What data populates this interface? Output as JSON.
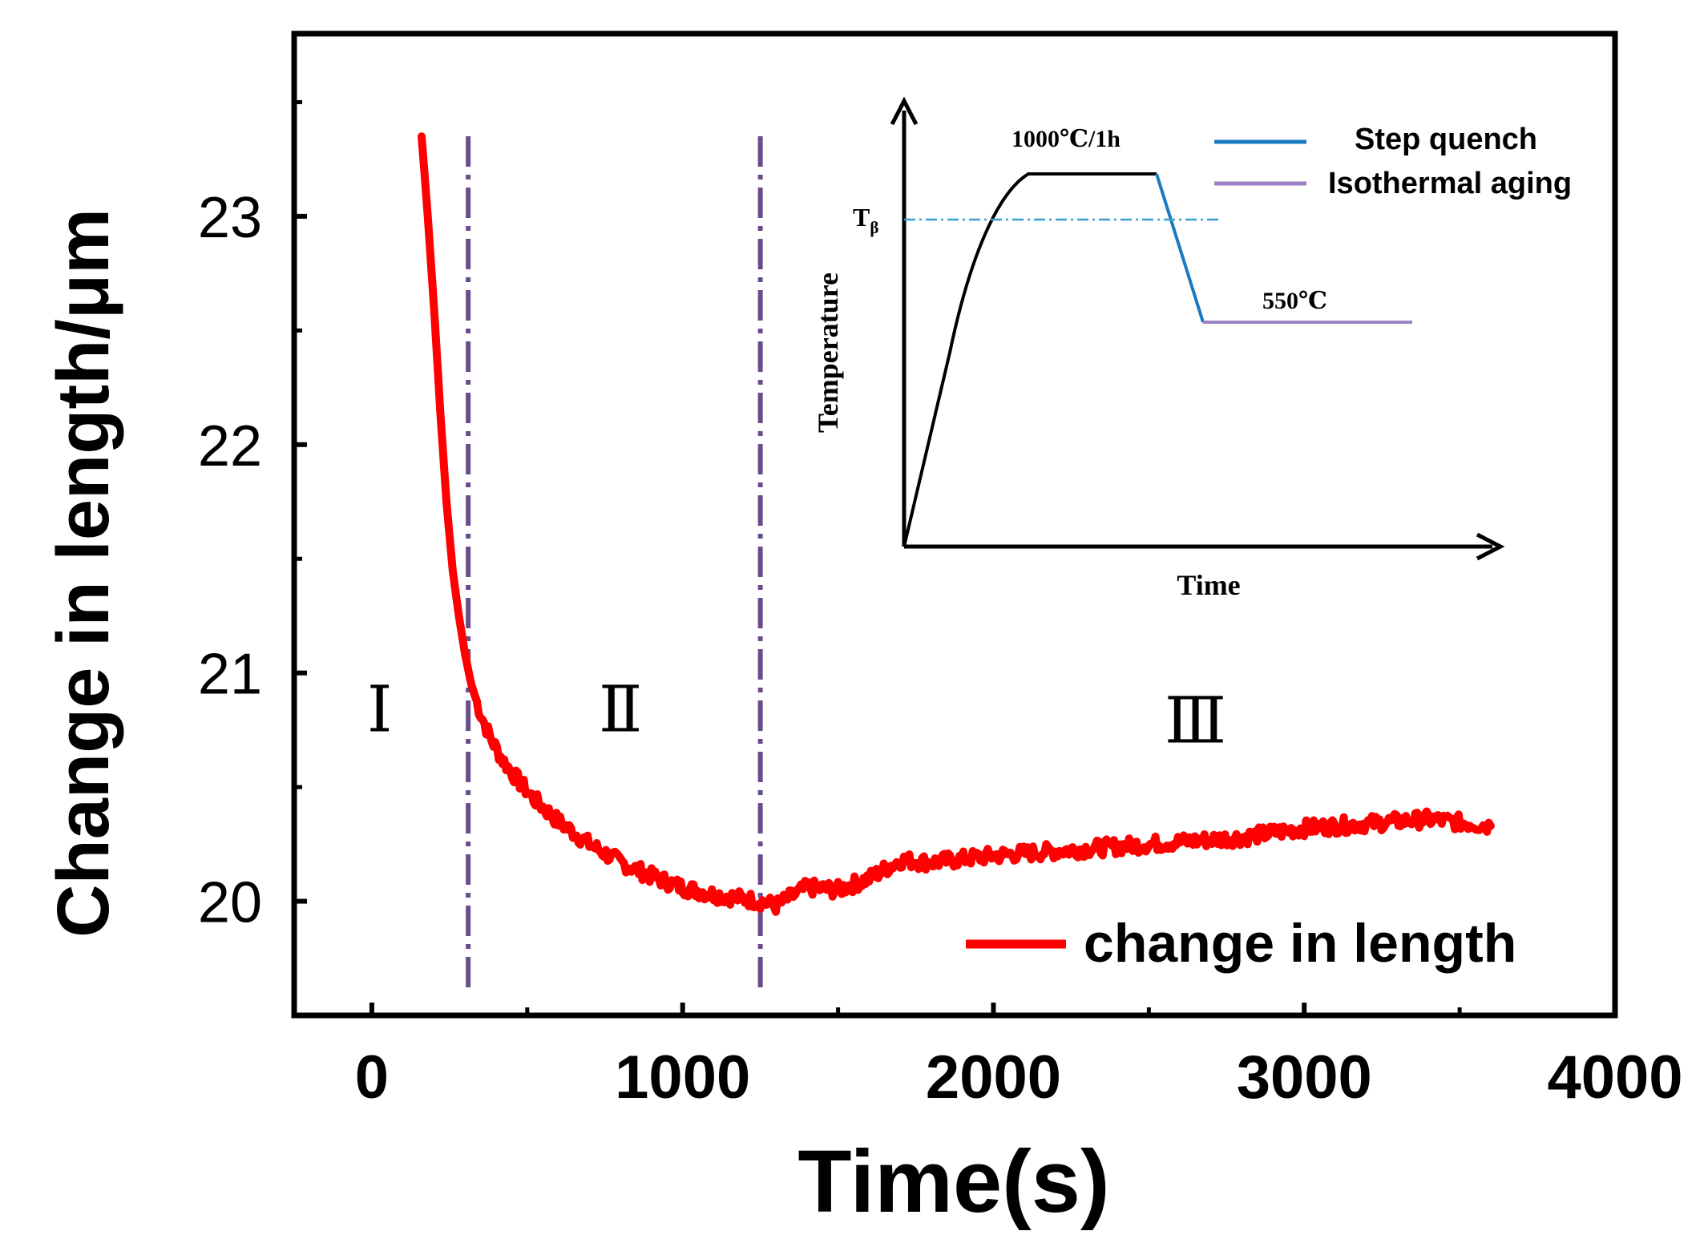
{
  "chart_data": {
    "type": "line",
    "title": "",
    "xlabel": "Time(s)",
    "ylabel": "Change in length/μm",
    "xlim": [
      -250,
      4000
    ],
    "ylim": [
      19.5,
      23.8
    ],
    "xticks": [
      0,
      1000,
      2000,
      3000,
      4000
    ],
    "xtick_labels": [
      "0",
      "1000",
      "2000",
      "3000",
      "4000"
    ],
    "yticks": [
      20,
      21,
      22,
      23
    ],
    "ytick_labels": [
      "20",
      "21",
      "22",
      "23"
    ],
    "grid": false,
    "legend": {
      "position": "bottom-right",
      "entries": [
        {
          "name": "change in length",
          "color": "#ff0000"
        }
      ]
    },
    "series": [
      {
        "name": "change in length",
        "color": "#ff0000",
        "x": [
          160,
          180,
          200,
          220,
          240,
          260,
          280,
          300,
          320,
          350,
          380,
          420,
          470,
          520,
          600,
          700,
          800,
          900,
          1000,
          1100,
          1200,
          1250,
          1300,
          1350,
          1400,
          1500,
          1600,
          1700,
          1800,
          2000,
          2200,
          2400,
          2600,
          2800,
          3000,
          3200,
          3400,
          3600
        ],
        "y": [
          23.35,
          23.0,
          22.6,
          22.15,
          21.75,
          21.45,
          21.25,
          21.08,
          20.95,
          20.82,
          20.72,
          20.62,
          20.53,
          20.45,
          20.35,
          20.25,
          20.17,
          20.11,
          20.06,
          20.03,
          20.01,
          20.0,
          19.98,
          20.02,
          20.06,
          20.05,
          20.1,
          20.18,
          20.17,
          20.2,
          20.22,
          20.24,
          20.26,
          20.28,
          20.32,
          20.34,
          20.36,
          20.33
        ]
      }
    ],
    "vlines": [
      {
        "x": 310,
        "color": "#6a4c8c",
        "style": "dash-dot"
      },
      {
        "x": 1250,
        "color": "#6a4c8c",
        "style": "dash-dot"
      }
    ],
    "region_labels": [
      {
        "text": "Ⅰ",
        "x": 25,
        "y": 20.85
      },
      {
        "text": "Ⅱ",
        "x": 800,
        "y": 20.85
      },
      {
        "text": "Ⅲ",
        "x": 2650,
        "y": 20.8
      }
    ],
    "inset": {
      "type": "schematic",
      "xlabel": "Time",
      "ylabel": "Temperature",
      "annotations": {
        "hold": "1000℃/1h",
        "tbeta_main": "T",
        "tbeta_sub": "β",
        "aging": "550℃"
      },
      "legend": [
        {
          "name": "Step quench",
          "color": "#1a7ac0"
        },
        {
          "name": "Isothermal aging",
          "color": "#9d80c2"
        }
      ]
    }
  }
}
